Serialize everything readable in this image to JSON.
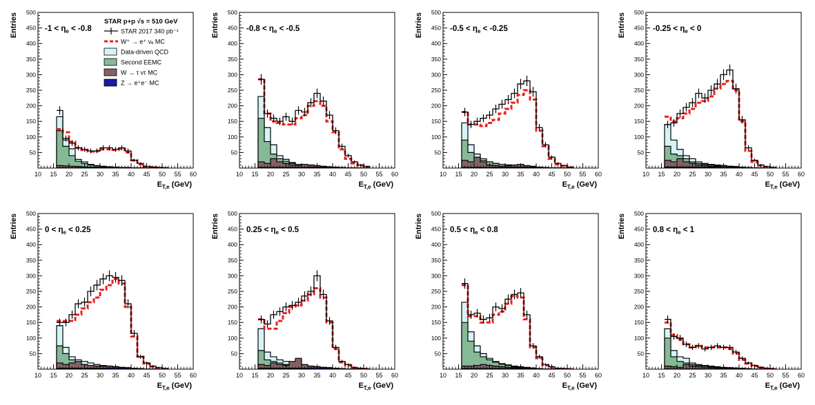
{
  "style": {
    "data_color": "#000000",
    "w_mc_color": "#e8201c",
    "qcd_color": "#d6f4f8",
    "eemc_color": "#86b996",
    "tau_color": "#806266",
    "z_color": "#1c1aaa"
  },
  "chart_data": {
    "type": "histogram",
    "grid": false,
    "xlabel_main": "E",
    "xlabel_sub": "T,e",
    "xlabel_unit": " (GeV)",
    "ylabel": "Entries",
    "xlim": [
      10,
      60
    ],
    "ylim": [
      0,
      500
    ],
    "x_ticks": [
      "10",
      "15",
      "20",
      "25",
      "30",
      "35",
      "40",
      "45",
      "50",
      "55",
      "60"
    ],
    "y_ticks": [
      "50",
      "100",
      "150",
      "200",
      "250",
      "300",
      "350",
      "400",
      "450",
      "500"
    ],
    "bin_edges": [
      16,
      18,
      20,
      22,
      24,
      26,
      28,
      30,
      32,
      34,
      36,
      38,
      40,
      42,
      44,
      46,
      48,
      50,
      52
    ],
    "legend": {
      "position": "top-left of first panel",
      "header": "STAR p+p √s = 510 GeV",
      "entries": [
        {
          "key": "data",
          "label": "STAR 2017 340 pb⁻¹"
        },
        {
          "key": "w_mc",
          "label": "W⁺ → e⁺ νₑ MC"
        },
        {
          "key": "qcd",
          "label": "Data-driven QCD"
        },
        {
          "key": "eemc",
          "label": "Second EEMC"
        },
        {
          "key": "tau",
          "label": "W → τ ντ MC"
        },
        {
          "key": "z",
          "label": "Z → e⁺e⁻ MC"
        }
      ]
    },
    "panels": [
      {
        "label_pre": "-1 < η",
        "label_post": " < -0.8",
        "data": [
          185,
          95,
          80,
          65,
          60,
          55,
          55,
          65,
          65,
          60,
          65,
          55,
          25,
          15,
          5,
          3,
          2,
          1
        ],
        "w_mc": [
          125,
          115,
          85,
          65,
          58,
          53,
          55,
          60,
          60,
          58,
          62,
          50,
          25,
          12,
          5,
          3,
          1,
          0
        ],
        "qcd": [
          165,
          90,
          62,
          28,
          20,
          12,
          8,
          6,
          4,
          3,
          2,
          2,
          1,
          1,
          0,
          0,
          0,
          0
        ],
        "eemc": [
          120,
          70,
          40,
          22,
          15,
          10,
          7,
          5,
          4,
          3,
          2,
          2,
          1,
          1,
          0,
          0,
          0,
          0
        ],
        "tau": [
          8,
          7,
          6,
          5,
          4,
          3,
          3,
          2,
          2,
          2,
          1,
          1,
          1,
          0,
          0,
          0,
          0,
          0
        ],
        "z": [
          1,
          1,
          1,
          1,
          1,
          1,
          1,
          1,
          1,
          1,
          1,
          1,
          0,
          0,
          0,
          0,
          0,
          0
        ]
      },
      {
        "label_pre": "-0.8 < η",
        "label_post": " < -0.5",
        "data": [
          285,
          175,
          160,
          150,
          165,
          150,
          185,
          180,
          210,
          240,
          215,
          170,
          120,
          70,
          40,
          20,
          10,
          5
        ],
        "w_mc": [
          285,
          175,
          150,
          145,
          140,
          140,
          160,
          170,
          200,
          215,
          200,
          150,
          115,
          60,
          30,
          15,
          8,
          4
        ],
        "qcd": [
          230,
          130,
          75,
          40,
          28,
          18,
          12,
          10,
          8,
          6,
          5,
          4,
          3,
          2,
          1,
          1,
          0,
          0
        ],
        "eemc": [
          160,
          85,
          45,
          30,
          22,
          15,
          12,
          10,
          8,
          6,
          5,
          4,
          3,
          2,
          1,
          1,
          0,
          0
        ],
        "tau": [
          20,
          15,
          30,
          20,
          15,
          10,
          8,
          12,
          10,
          8,
          6,
          4,
          3,
          2,
          1,
          0,
          0,
          0
        ],
        "z": [
          2,
          2,
          2,
          2,
          2,
          2,
          2,
          2,
          3,
          3,
          3,
          3,
          2,
          1,
          1,
          0,
          0,
          0
        ]
      },
      {
        "label_pre": "-0.5 < η",
        "label_post": " < -0.25",
        "data": [
          180,
          140,
          150,
          160,
          170,
          190,
          205,
          220,
          240,
          270,
          280,
          245,
          130,
          75,
          35,
          15,
          8,
          3
        ],
        "w_mc": [
          180,
          140,
          140,
          135,
          145,
          155,
          175,
          190,
          210,
          235,
          250,
          220,
          120,
          70,
          30,
          12,
          6,
          2
        ],
        "qcd": [
          145,
          75,
          45,
          30,
          20,
          15,
          12,
          10,
          8,
          6,
          5,
          4,
          3,
          2,
          1,
          1,
          0,
          0
        ],
        "eemc": [
          90,
          50,
          35,
          25,
          20,
          15,
          12,
          10,
          8,
          6,
          5,
          4,
          3,
          2,
          1,
          1,
          0,
          0
        ],
        "tau": [
          25,
          20,
          35,
          20,
          10,
          8,
          6,
          8,
          10,
          12,
          8,
          6,
          3,
          2,
          1,
          0,
          0,
          0
        ],
        "z": [
          2,
          2,
          2,
          2,
          2,
          2,
          2,
          3,
          3,
          3,
          3,
          3,
          2,
          1,
          1,
          0,
          0,
          0
        ]
      },
      {
        "label_pre": "-0.25 < η",
        "label_post": " < 0",
        "data": [
          140,
          145,
          175,
          195,
          210,
          240,
          225,
          250,
          270,
          300,
          315,
          255,
          155,
          65,
          25,
          10,
          5,
          2
        ],
        "w_mc": [
          165,
          150,
          160,
          175,
          190,
          210,
          215,
          230,
          255,
          270,
          280,
          250,
          150,
          55,
          20,
          8,
          4,
          1
        ],
        "qcd": [
          140,
          90,
          60,
          40,
          30,
          20,
          15,
          12,
          10,
          8,
          6,
          5,
          3,
          2,
          1,
          1,
          0,
          0
        ],
        "eemc": [
          70,
          45,
          40,
          30,
          20,
          15,
          12,
          10,
          8,
          6,
          5,
          4,
          3,
          2,
          1,
          1,
          0,
          0
        ],
        "tau": [
          25,
          20,
          30,
          20,
          15,
          10,
          8,
          6,
          6,
          8,
          6,
          4,
          3,
          2,
          1,
          0,
          0,
          0
        ],
        "z": [
          3,
          3,
          3,
          3,
          3,
          3,
          3,
          3,
          4,
          4,
          4,
          3,
          2,
          1,
          1,
          0,
          0,
          0
        ]
      },
      {
        "label_pre": "0 < η",
        "label_post": " < 0.25",
        "data": [
          150,
          150,
          175,
          210,
          215,
          250,
          270,
          290,
          300,
          295,
          285,
          210,
          115,
          40,
          20,
          10,
          5,
          2
        ],
        "w_mc": [
          155,
          155,
          155,
          175,
          195,
          215,
          230,
          255,
          270,
          290,
          275,
          200,
          105,
          40,
          18,
          8,
          4,
          1
        ],
        "qcd": [
          140,
          70,
          40,
          30,
          25,
          20,
          15,
          12,
          10,
          8,
          6,
          5,
          3,
          2,
          1,
          1,
          0,
          0
        ],
        "eemc": [
          75,
          50,
          30,
          20,
          15,
          12,
          10,
          8,
          6,
          5,
          4,
          3,
          2,
          1,
          1,
          0,
          0,
          0
        ],
        "tau": [
          20,
          15,
          20,
          25,
          15,
          12,
          10,
          10,
          10,
          8,
          6,
          4,
          3,
          2,
          1,
          0,
          0,
          0
        ],
        "z": [
          3,
          3,
          3,
          3,
          3,
          3,
          3,
          3,
          4,
          4,
          4,
          3,
          2,
          1,
          1,
          0,
          0,
          0
        ]
      },
      {
        "label_pre": "0.25 < η",
        "label_post": " < 0.5",
        "data": [
          160,
          145,
          175,
          185,
          200,
          205,
          215,
          235,
          250,
          300,
          240,
          155,
          70,
          25,
          15,
          5,
          3,
          1
        ],
        "w_mc": [
          160,
          130,
          130,
          155,
          180,
          200,
          205,
          220,
          240,
          260,
          230,
          150,
          65,
          22,
          12,
          5,
          2,
          1
        ],
        "qcd": [
          130,
          55,
          40,
          30,
          25,
          20,
          15,
          12,
          10,
          8,
          6,
          5,
          3,
          2,
          1,
          1,
          0,
          0
        ],
        "eemc": [
          60,
          30,
          25,
          20,
          15,
          12,
          10,
          8,
          6,
          5,
          4,
          3,
          2,
          1,
          1,
          0,
          0,
          0
        ],
        "tau": [
          15,
          12,
          20,
          15,
          12,
          25,
          35,
          15,
          10,
          8,
          6,
          4,
          3,
          2,
          1,
          0,
          0,
          0
        ],
        "z": [
          3,
          3,
          3,
          3,
          3,
          3,
          3,
          3,
          4,
          4,
          4,
          3,
          2,
          1,
          1,
          0,
          0,
          0
        ]
      },
      {
        "label_pre": "0.5 < η",
        "label_post": " < 0.8",
        "data": [
          275,
          175,
          180,
          160,
          165,
          200,
          195,
          225,
          240,
          245,
          175,
          75,
          40,
          15,
          8,
          3,
          2,
          1
        ],
        "w_mc": [
          270,
          170,
          170,
          150,
          150,
          175,
          185,
          210,
          235,
          230,
          160,
          70,
          35,
          12,
          6,
          2,
          1,
          0
        ],
        "qcd": [
          215,
          120,
          75,
          50,
          35,
          25,
          18,
          14,
          10,
          8,
          6,
          4,
          2,
          1,
          1,
          0,
          0,
          0
        ],
        "eemc": [
          150,
          90,
          55,
          40,
          30,
          22,
          16,
          12,
          8,
          6,
          5,
          3,
          2,
          1,
          1,
          0,
          0,
          0
        ],
        "tau": [
          10,
          10,
          12,
          15,
          12,
          10,
          8,
          6,
          5,
          4,
          3,
          2,
          1,
          1,
          0,
          0,
          0,
          0
        ],
        "z": [
          2,
          2,
          2,
          2,
          2,
          2,
          2,
          2,
          3,
          3,
          2,
          2,
          1,
          1,
          0,
          0,
          0,
          0
        ]
      },
      {
        "label_pre": "0.8 < η",
        "label_post": " < 1",
        "data": [
          160,
          105,
          100,
          80,
          70,
          75,
          65,
          70,
          75,
          70,
          70,
          55,
          35,
          20,
          12,
          6,
          3,
          1
        ],
        "w_mc": [
          150,
          110,
          95,
          80,
          70,
          75,
          70,
          70,
          70,
          70,
          65,
          50,
          30,
          18,
          10,
          5,
          2,
          1
        ],
        "qcd": [
          130,
          60,
          40,
          35,
          20,
          15,
          12,
          10,
          8,
          6,
          5,
          4,
          3,
          2,
          1,
          1,
          0,
          0
        ],
        "eemc": [
          100,
          40,
          25,
          20,
          15,
          12,
          10,
          8,
          6,
          5,
          4,
          3,
          2,
          1,
          1,
          0,
          0,
          0
        ],
        "tau": [
          10,
          8,
          6,
          15,
          10,
          8,
          6,
          5,
          4,
          3,
          2,
          2,
          1,
          1,
          0,
          0,
          0,
          0
        ],
        "z": [
          1,
          1,
          1,
          1,
          1,
          1,
          1,
          1,
          1,
          1,
          1,
          1,
          0,
          0,
          0,
          0,
          0,
          0
        ]
      }
    ]
  }
}
